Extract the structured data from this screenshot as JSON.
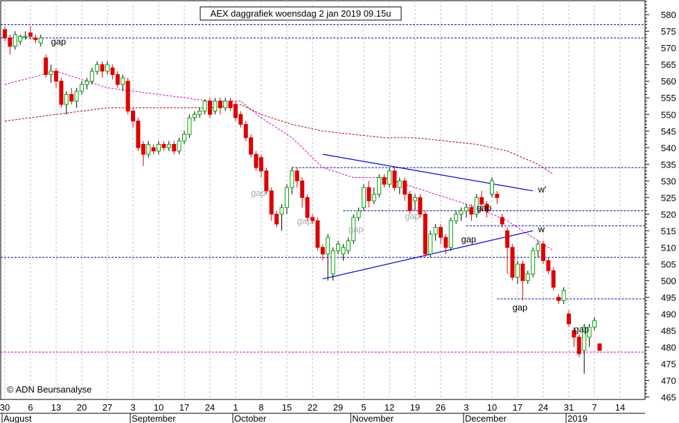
{
  "chart_data": {
    "type": "candlestick",
    "title": "AEX daggrafiek woensdag 2 jan 2019 09.15u",
    "watermark": "© ADN Beursanalyse",
    "colors": {
      "up": "#00a000",
      "down": "#dd0000",
      "hline": "#0000a0",
      "trend": "#0000cc",
      "ma_short": "#cc00cc",
      "ma_long": "#aa0000",
      "support_pink": "#cc00cc",
      "grid": "#c0c0c0"
    },
    "ylim": [
      463,
      584
    ],
    "y_ticks": [
      465,
      470,
      475,
      480,
      485,
      490,
      495,
      500,
      505,
      510,
      515,
      520,
      525,
      530,
      535,
      540,
      545,
      550,
      555,
      560,
      565,
      570,
      575,
      580
    ],
    "x_day_ticks": [
      {
        "label": "30",
        "i": 0
      },
      {
        "label": "6",
        "i": 5
      },
      {
        "label": "13",
        "i": 10
      },
      {
        "label": "20",
        "i": 15
      },
      {
        "label": "27",
        "i": 20
      },
      {
        "label": "3",
        "i": 25
      },
      {
        "label": "10",
        "i": 30
      },
      {
        "label": "17",
        "i": 35
      },
      {
        "label": "24",
        "i": 40
      },
      {
        "label": "1",
        "i": 45
      },
      {
        "label": "8",
        "i": 50
      },
      {
        "label": "15",
        "i": 55
      },
      {
        "label": "22",
        "i": 60
      },
      {
        "label": "29",
        "i": 65
      },
      {
        "label": "5",
        "i": 70
      },
      {
        "label": "12",
        "i": 75
      },
      {
        "label": "19",
        "i": 80
      },
      {
        "label": "26",
        "i": 85
      },
      {
        "label": "3",
        "i": 90
      },
      {
        "label": "10",
        "i": 95
      },
      {
        "label": "17",
        "i": 100
      },
      {
        "label": "24",
        "i": 105
      },
      {
        "label": "31",
        "i": 110
      },
      {
        "label": "7",
        "i": 115
      },
      {
        "label": "14",
        "i": 120
      }
    ],
    "x_months": [
      {
        "label": "August",
        "i": 0
      },
      {
        "label": "September",
        "i": 25
      },
      {
        "label": "October",
        "i": 45
      },
      {
        "label": "November",
        "i": 68
      },
      {
        "label": "December",
        "i": 90
      },
      {
        "label": "2019",
        "i": 110
      }
    ],
    "candles": [
      [
        575.5,
        573,
        576.5,
        572
      ],
      [
        573,
        570.5,
        574,
        568
      ],
      [
        570.5,
        574,
        575,
        569.5
      ],
      [
        572,
        573.5,
        574,
        571
      ],
      [
        573.5,
        573.5,
        575,
        572.5
      ],
      [
        574.5,
        573.5,
        576.5,
        572.5
      ],
      [
        573,
        572.5,
        574,
        571.5
      ],
      [
        571.5,
        573,
        574,
        570.5
      ],
      [
        567,
        562,
        568,
        561
      ],
      [
        562,
        563,
        565,
        559.5
      ],
      [
        563,
        560,
        564,
        558
      ],
      [
        560,
        553,
        561,
        552
      ],
      [
        553,
        556,
        557,
        550
      ],
      [
        556,
        554,
        558,
        553
      ],
      [
        554,
        557,
        558,
        552
      ],
      [
        557,
        559,
        560,
        556
      ],
      [
        559,
        560,
        561,
        557.5
      ],
      [
        560,
        563,
        564,
        559
      ],
      [
        563,
        565,
        566,
        562
      ],
      [
        565,
        563,
        566,
        561
      ],
      [
        563,
        565,
        566,
        562
      ],
      [
        564,
        562,
        565,
        560.5
      ],
      [
        562,
        559,
        563,
        558
      ],
      [
        559,
        561,
        562,
        557
      ],
      [
        560,
        551,
        561,
        550
      ],
      [
        551,
        548,
        552,
        546
      ],
      [
        548,
        540,
        549,
        539
      ],
      [
        541,
        538,
        542,
        534.5
      ],
      [
        538,
        541,
        542,
        537
      ],
      [
        540,
        539,
        541,
        538
      ],
      [
        539,
        541,
        542,
        538
      ],
      [
        541,
        540,
        542,
        539
      ],
      [
        540,
        541,
        542,
        539
      ],
      [
        541,
        539,
        542,
        538
      ],
      [
        539,
        542,
        543,
        538
      ],
      [
        542,
        544,
        545,
        541
      ],
      [
        544,
        549,
        550,
        543
      ],
      [
        549,
        550,
        551,
        548
      ],
      [
        550,
        551,
        552,
        549
      ],
      [
        551,
        554,
        554.5,
        550
      ],
      [
        554,
        550,
        555,
        549
      ],
      [
        551,
        554,
        555,
        550
      ],
      [
        554,
        552,
        555,
        550
      ],
      [
        552,
        554,
        555,
        551
      ],
      [
        554,
        552,
        555,
        551
      ],
      [
        553,
        549,
        554,
        548
      ],
      [
        550,
        547,
        551,
        546
      ],
      [
        547,
        543,
        548,
        542
      ],
      [
        543,
        538,
        544,
        537
      ],
      [
        538,
        534,
        539,
        533
      ],
      [
        537,
        533,
        538,
        531
      ],
      [
        533,
        527,
        534,
        526
      ],
      [
        527,
        520,
        528,
        518
      ],
      [
        520,
        517,
        521,
        516
      ],
      [
        520,
        522,
        523,
        515
      ],
      [
        522,
        528,
        529,
        520
      ],
      [
        528,
        533,
        534,
        526
      ],
      [
        533,
        530,
        534,
        528
      ],
      [
        530,
        525,
        531,
        522
      ],
      [
        525,
        519,
        526,
        518
      ],
      [
        519,
        518,
        520,
        517
      ],
      [
        518,
        510,
        519,
        509
      ],
      [
        510,
        508,
        511,
        506
      ],
      [
        508,
        513,
        514,
        500
      ],
      [
        502,
        509,
        510,
        500
      ],
      [
        509,
        511,
        512,
        508
      ],
      [
        508,
        510,
        511,
        506
      ],
      [
        509,
        512,
        513,
        508
      ],
      [
        512,
        519,
        520,
        511
      ],
      [
        519,
        521,
        522,
        518
      ],
      [
        522,
        528,
        529,
        521
      ],
      [
        528,
        524,
        530,
        522
      ],
      [
        524,
        526,
        528,
        523
      ],
      [
        526,
        531,
        532,
        525
      ],
      [
        531,
        529,
        532,
        528
      ],
      [
        529,
        533,
        534,
        528
      ],
      [
        533,
        528,
        534,
        527
      ],
      [
        528,
        530,
        531,
        526
      ],
      [
        530,
        526,
        531,
        524
      ],
      [
        526,
        521,
        527,
        520
      ],
      [
        524,
        525,
        526,
        521
      ],
      [
        525,
        520,
        526,
        519
      ],
      [
        520,
        508,
        521,
        507
      ],
      [
        508,
        514,
        515,
        507
      ],
      [
        514,
        516,
        517,
        512
      ],
      [
        516,
        513,
        517,
        511
      ],
      [
        513,
        510,
        514,
        508
      ],
      [
        510,
        518,
        519,
        509
      ],
      [
        518,
        520,
        521,
        517
      ],
      [
        520,
        521,
        522,
        518
      ],
      [
        521,
        522,
        523,
        519
      ],
      [
        522,
        520,
        523,
        518
      ],
      [
        520,
        525,
        526,
        519
      ],
      [
        525,
        523,
        527,
        521
      ],
      [
        523,
        521,
        524,
        519
      ],
      [
        526,
        530,
        531,
        525
      ],
      [
        526,
        525,
        527,
        523
      ],
      [
        519,
        517,
        520,
        516
      ],
      [
        515,
        510,
        516,
        502
      ],
      [
        510,
        501,
        511,
        500
      ],
      [
        501,
        505,
        506,
        499
      ],
      [
        505,
        500,
        506,
        494
      ],
      [
        500,
        502,
        503,
        499
      ],
      [
        502,
        509,
        510,
        501
      ],
      [
        509,
        511,
        512,
        507
      ],
      [
        511,
        506,
        512,
        505
      ],
      [
        506,
        503,
        507,
        502
      ],
      [
        503,
        498,
        504,
        497
      ],
      [
        495,
        494,
        496,
        493
      ],
      [
        494,
        497,
        498,
        493
      ],
      [
        490,
        487,
        491,
        486
      ],
      [
        485,
        483,
        486,
        480
      ],
      [
        483,
        478,
        484,
        477
      ],
      [
        479,
        486,
        487,
        472
      ],
      [
        483,
        486,
        487,
        480
      ],
      [
        486,
        488,
        489,
        485
      ],
      [
        481,
        479,
        481,
        479
      ]
    ],
    "ma_short": [
      [
        0,
        559
      ],
      [
        10,
        563
      ],
      [
        20,
        558
      ],
      [
        30,
        556
      ],
      [
        40,
        554
      ],
      [
        46,
        554
      ],
      [
        50,
        549
      ],
      [
        56,
        543
      ],
      [
        62,
        534
      ],
      [
        68,
        531
      ],
      [
        74,
        531
      ],
      [
        80,
        528
      ],
      [
        86,
        525
      ],
      [
        92,
        522
      ],
      [
        98,
        518
      ],
      [
        104,
        512
      ],
      [
        107,
        509
      ]
    ],
    "ma_long": [
      [
        0,
        548
      ],
      [
        10,
        550
      ],
      [
        20,
        552
      ],
      [
        30,
        552
      ],
      [
        40,
        552
      ],
      [
        46,
        553
      ],
      [
        50,
        550
      ],
      [
        56,
        547
      ],
      [
        62,
        545
      ],
      [
        68,
        544
      ],
      [
        74,
        543
      ],
      [
        80,
        543
      ],
      [
        86,
        542
      ],
      [
        92,
        541
      ],
      [
        98,
        539
      ],
      [
        104,
        535
      ],
      [
        107,
        532
      ]
    ],
    "h_lines": [
      {
        "y": 577,
        "color": "#0000a0"
      },
      {
        "y": 573,
        "color": "#0000a0"
      },
      {
        "y": 534,
        "color": "#0000a0",
        "from": 56
      },
      {
        "y": 521,
        "color": "#0000a0",
        "from": 66
      },
      {
        "y": 516.5,
        "color": "#0000a0",
        "from": 90
      },
      {
        "y": 507,
        "color": "#0000a0"
      },
      {
        "y": 494.5,
        "color": "#0000a0",
        "from": 96
      },
      {
        "y": 478.5,
        "color": "#cc00cc"
      }
    ],
    "trendlines": [
      {
        "x1": 62,
        "y1": 538,
        "x2": 103,
        "y2": 527
      },
      {
        "x1": 62,
        "y1": 500.5,
        "x2": 103,
        "y2": 515
      }
    ],
    "gaps_dark": [
      {
        "text": "gap",
        "i": 9,
        "y": 571
      },
      {
        "text": "gap",
        "i": 92,
        "y": 521
      },
      {
        "text": "gap",
        "i": 89,
        "y": 511.5
      },
      {
        "text": "gap",
        "i": 99,
        "y": 491
      },
      {
        "text": "gap",
        "i": 111,
        "y": 484.5
      }
    ],
    "gaps_gray": [
      {
        "text": "gap",
        "i": 48,
        "y": 525.5
      },
      {
        "text": "gap",
        "i": 57,
        "y": 517
      },
      {
        "text": "gap",
        "i": 67,
        "y": 514.5
      },
      {
        "text": "gap",
        "i": 78,
        "y": 518.5
      }
    ],
    "wave_labels": [
      {
        "text": "w'",
        "i": 104,
        "y": 526.5
      },
      {
        "text": "w",
        "i": 104,
        "y": 514.5
      }
    ]
  }
}
